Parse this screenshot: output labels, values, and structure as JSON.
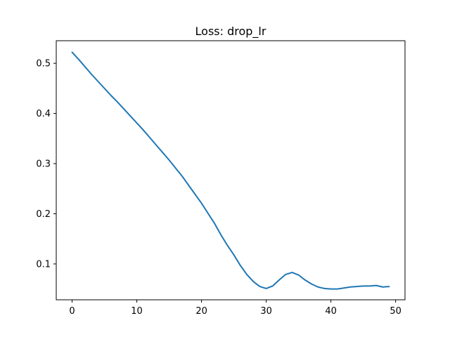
{
  "chart_data": {
    "type": "line",
    "title": "Loss: drop_lr",
    "xlabel": "",
    "ylabel": "",
    "xlim": [
      -2.45,
      51.45
    ],
    "ylim": [
      0.0285,
      0.545
    ],
    "x_ticks": [
      0,
      10,
      20,
      30,
      40,
      50
    ],
    "y_ticks": [
      0.1,
      0.2,
      0.3,
      0.4,
      0.5
    ],
    "grid": false,
    "legend": "none",
    "series": [
      {
        "color": "#1f77b4",
        "x": [
          0,
          1,
          2,
          3,
          4,
          5,
          6,
          7,
          8,
          9,
          10,
          11,
          12,
          13,
          14,
          15,
          16,
          17,
          18,
          19,
          20,
          21,
          22,
          23,
          24,
          25,
          26,
          27,
          28,
          29,
          30,
          31,
          32,
          33,
          34,
          35,
          36,
          37,
          38,
          39,
          40,
          41,
          42,
          43,
          44,
          45,
          46,
          47,
          48,
          49
        ],
        "y": [
          0.522,
          0.508,
          0.493,
          0.478,
          0.464,
          0.45,
          0.436,
          0.423,
          0.409,
          0.395,
          0.381,
          0.367,
          0.352,
          0.337,
          0.322,
          0.307,
          0.291,
          0.275,
          0.257,
          0.239,
          0.221,
          0.201,
          0.181,
          0.158,
          0.137,
          0.118,
          0.097,
          0.079,
          0.065,
          0.055,
          0.051,
          0.056,
          0.068,
          0.079,
          0.083,
          0.078,
          0.068,
          0.06,
          0.054,
          0.051,
          0.05,
          0.05,
          0.052,
          0.054,
          0.055,
          0.056,
          0.056,
          0.057,
          0.054,
          0.055
        ]
      }
    ]
  }
}
